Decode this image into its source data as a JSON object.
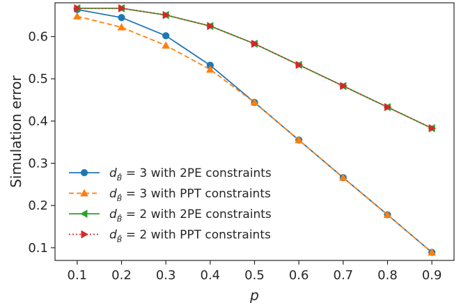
{
  "chart_data": {
    "type": "line",
    "xlabel": "p",
    "ylabel": "Simulation error",
    "xlim": [
      0.05,
      0.95
    ],
    "ylim": [
      0.07,
      0.68
    ],
    "x_ticks": [
      "0.1",
      "0.2",
      "0.3",
      "0.4",
      "0.5",
      "0.6",
      "0.7",
      "0.8",
      "0.9"
    ],
    "y_ticks": [
      "0.1",
      "0.2",
      "0.3",
      "0.4",
      "0.5",
      "0.6"
    ],
    "x": [
      0.1,
      0.2,
      0.3,
      0.4,
      0.5,
      0.6,
      0.7,
      0.8,
      0.9
    ],
    "grid": false,
    "legend_position": "lower-left",
    "series": [
      {
        "name": "d_B = 3 with 2PE constraints",
        "legend_prefix": "d",
        "legend_sub": "B̂",
        "legend_suffix": " = 3 with 2PE constraints",
        "values": [
          0.664,
          0.645,
          0.602,
          0.532,
          0.444,
          0.355,
          0.266,
          0.178,
          0.089
        ],
        "color": "#1f77b4",
        "line_style": "solid",
        "marker": "circle"
      },
      {
        "name": "d_B = 3 with PPT constraints",
        "legend_prefix": "d",
        "legend_sub": "B̂",
        "legend_suffix": " = 3 with PPT constraints",
        "values": [
          0.648,
          0.622,
          0.579,
          0.522,
          0.444,
          0.355,
          0.266,
          0.178,
          0.089
        ],
        "color": "#ff7f0e",
        "line_style": "dashed",
        "marker": "triangle-up"
      },
      {
        "name": "d_B = 2 with 2PE constraints",
        "legend_prefix": "d",
        "legend_sub": "B̂",
        "legend_suffix": " = 2 with 2PE constraints",
        "values": [
          0.667,
          0.667,
          0.651,
          0.625,
          0.583,
          0.533,
          0.483,
          0.433,
          0.383
        ],
        "color": "#2ca02c",
        "line_style": "solid",
        "marker": "triangle-left"
      },
      {
        "name": "d_B = 2 with PPT constraints",
        "legend_prefix": "d",
        "legend_sub": "B̂",
        "legend_suffix": " = 2 with PPT constraints",
        "values": [
          0.667,
          0.667,
          0.651,
          0.625,
          0.583,
          0.533,
          0.483,
          0.433,
          0.383
        ],
        "color": "#d62728",
        "line_style": "dotted",
        "marker": "triangle-right"
      }
    ]
  }
}
